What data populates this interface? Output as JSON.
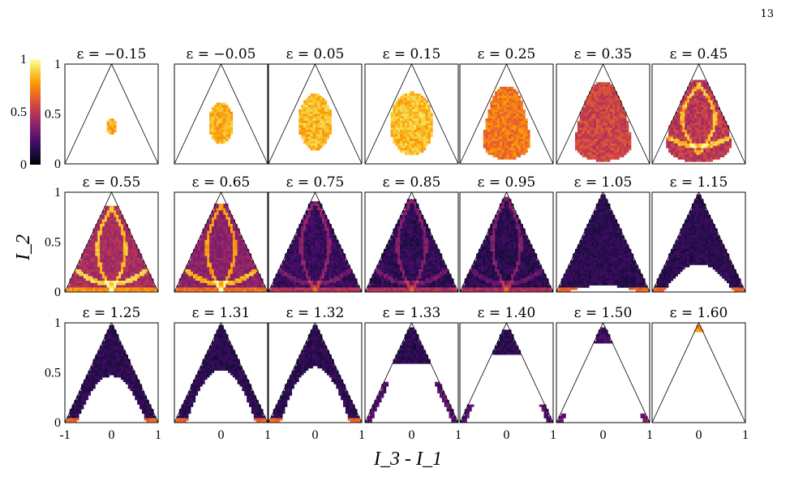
{
  "page_number": "13",
  "colormap": {
    "name": "inferno",
    "stops": [
      "#000004",
      "#1b0c41",
      "#4a0c6b",
      "#781c6d",
      "#a52c60",
      "#cf4446",
      "#ed6925",
      "#fb9b06",
      "#f7d13d",
      "#fcffa4"
    ]
  },
  "chart_data": {
    "type": "heatmap",
    "layout": "small-multiples 3x7",
    "xlabel": "I_3 - I_1",
    "ylabel": "I_2",
    "xlim": [
      -1,
      1
    ],
    "ylim": [
      0,
      1
    ],
    "x_tick_labels": [
      "-1",
      "0",
      "1"
    ],
    "y_tick_labels": [
      "0",
      "0.5",
      "1"
    ],
    "colorbar": {
      "ticks": [
        "0",
        "0.5",
        "1"
      ],
      "range": [
        0,
        1
      ]
    },
    "epsilon_prefix": "ε = ",
    "panels": [
      {
        "epsilon": "−0.15",
        "region": "blob",
        "top": 0.45,
        "bottom": 0.29,
        "halfwidth": 0.1,
        "intensity": 0.8
      },
      {
        "epsilon": "−0.05",
        "region": "blob",
        "top": 0.62,
        "bottom": 0.2,
        "halfwidth": 0.26,
        "intensity": 0.82
      },
      {
        "epsilon": "0.05",
        "region": "blob",
        "top": 0.7,
        "bottom": 0.14,
        "halfwidth": 0.36,
        "intensity": 0.84
      },
      {
        "epsilon": "0.15",
        "region": "blob",
        "top": 0.72,
        "bottom": 0.08,
        "halfwidth": 0.46,
        "intensity": 0.85
      },
      {
        "epsilon": "0.25",
        "region": "pear",
        "top": 0.78,
        "bottom": 0.05,
        "halfwidth": 0.58,
        "intensity": 0.7
      },
      {
        "epsilon": "0.35",
        "region": "pear",
        "top": 0.82,
        "bottom": 0.03,
        "halfwidth": 0.7,
        "intensity": 0.55
      },
      {
        "epsilon": "0.45",
        "region": "pear",
        "top": 0.84,
        "bottom": 0.02,
        "halfwidth": 0.8,
        "intensity": 0.5,
        "caustic": true
      },
      {
        "epsilon": "0.55",
        "region": "triangle",
        "top": 0.86,
        "bottom": 0.0,
        "intensity": 0.45,
        "caustic": true
      },
      {
        "epsilon": "0.65",
        "region": "triangle",
        "top": 0.88,
        "bottom": 0.0,
        "intensity": 0.38,
        "caustic": true
      },
      {
        "epsilon": "0.75",
        "region": "triangle",
        "top": 0.92,
        "bottom": 0.0,
        "intensity": 0.18,
        "caustic": true
      },
      {
        "epsilon": "0.85",
        "region": "triangle",
        "top": 0.94,
        "bottom": 0.0,
        "intensity": 0.16,
        "caustic": true
      },
      {
        "epsilon": "0.95",
        "region": "triangle",
        "top": 0.96,
        "bottom": 0.0,
        "intensity": 0.15,
        "caustic": true
      },
      {
        "epsilon": "1.05",
        "region": "arch",
        "top": 0.98,
        "hole": 0.07,
        "intensity": 0.15
      },
      {
        "epsilon": "1.15",
        "region": "arch",
        "top": 0.98,
        "hole": 0.28,
        "intensity": 0.15
      },
      {
        "epsilon": "1.25",
        "region": "arch",
        "top": 0.98,
        "hole": 0.47,
        "intensity": 0.15
      },
      {
        "epsilon": "1.31",
        "region": "arch",
        "top": 0.98,
        "hole": 0.53,
        "intensity": 0.15
      },
      {
        "epsilon": "1.32",
        "region": "arch",
        "top": 0.98,
        "hole": 0.56,
        "intensity": 0.15
      },
      {
        "epsilon": "1.33",
        "region": "split",
        "top": 0.96,
        "cut": 0.58,
        "legs": 0.4,
        "intensity": 0.15
      },
      {
        "epsilon": "1.40",
        "region": "split",
        "top": 0.94,
        "cut": 0.68,
        "legs": 0.18,
        "intensity": 0.15
      },
      {
        "epsilon": "1.50",
        "region": "split",
        "top": 0.95,
        "cut": 0.8,
        "legs": 0.08,
        "intensity": 0.2
      },
      {
        "epsilon": "1.60",
        "region": "tip",
        "top": 0.98,
        "cut": 0.9,
        "intensity": 0.7
      }
    ]
  }
}
